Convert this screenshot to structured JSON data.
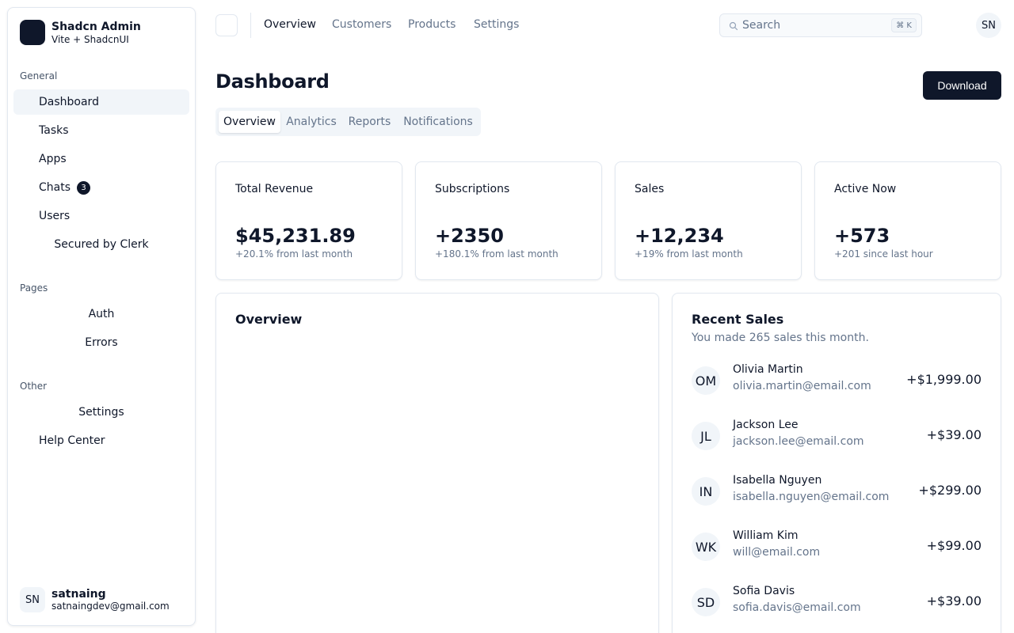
{
  "brand": {
    "title": "Shadcn Admin",
    "subtitle": "Vite + ShadcnUI"
  },
  "sidebar": {
    "groups": [
      {
        "label": "General",
        "items": [
          {
            "label": "Dashboard"
          },
          {
            "label": "Tasks"
          },
          {
            "label": "Apps"
          },
          {
            "label": "Chats",
            "badge": "3"
          },
          {
            "label": "Users"
          },
          {
            "label": "Secured by Clerk"
          }
        ]
      },
      {
        "label": "Pages",
        "items": [
          {
            "label": "Auth"
          },
          {
            "label": "Errors"
          }
        ]
      },
      {
        "label": "Other",
        "items": [
          {
            "label": "Settings"
          },
          {
            "label": "Help Center"
          }
        ]
      }
    ],
    "user": {
      "initials": "SN",
      "name": "satnaing",
      "email": "satnaingdev@gmail.com"
    }
  },
  "topnav": {
    "links": [
      "Overview",
      "Customers",
      "Products",
      "Settings"
    ],
    "search_placeholder": "Search",
    "search_shortcut": "⌘ K",
    "avatar_initials": "SN"
  },
  "page": {
    "title": "Dashboard",
    "download_label": "Download",
    "tabs": [
      "Overview",
      "Analytics",
      "Reports",
      "Notifications"
    ]
  },
  "stats": [
    {
      "label": "Total Revenue",
      "value": "$45,231.89",
      "change": "+20.1% from last month"
    },
    {
      "label": "Subscriptions",
      "value": "+2350",
      "change": "+180.1% from last month"
    },
    {
      "label": "Sales",
      "value": "+12,234",
      "change": "+19% from last month"
    },
    {
      "label": "Active Now",
      "value": "+573",
      "change": "+201 since last hour"
    }
  ],
  "overview": {
    "title": "Overview"
  },
  "recent_sales": {
    "title": "Recent Sales",
    "description": "You made 265 sales this month.",
    "items": [
      {
        "initials": "OM",
        "name": "Olivia Martin",
        "email": "olivia.martin@email.com",
        "amount": "+$1,999.00"
      },
      {
        "initials": "JL",
        "name": "Jackson Lee",
        "email": "jackson.lee@email.com",
        "amount": "+$39.00"
      },
      {
        "initials": "IN",
        "name": "Isabella Nguyen",
        "email": "isabella.nguyen@email.com",
        "amount": "+$299.00"
      },
      {
        "initials": "WK",
        "name": "William Kim",
        "email": "will@email.com",
        "amount": "+$99.00"
      },
      {
        "initials": "SD",
        "name": "Sofia Davis",
        "email": "sofia.davis@email.com",
        "amount": "+$39.00"
      }
    ]
  },
  "colors": {
    "primary": "#0f172a",
    "muted": "#f1f5f9",
    "muted_text": "#64748b",
    "border": "#e2e8f0"
  }
}
